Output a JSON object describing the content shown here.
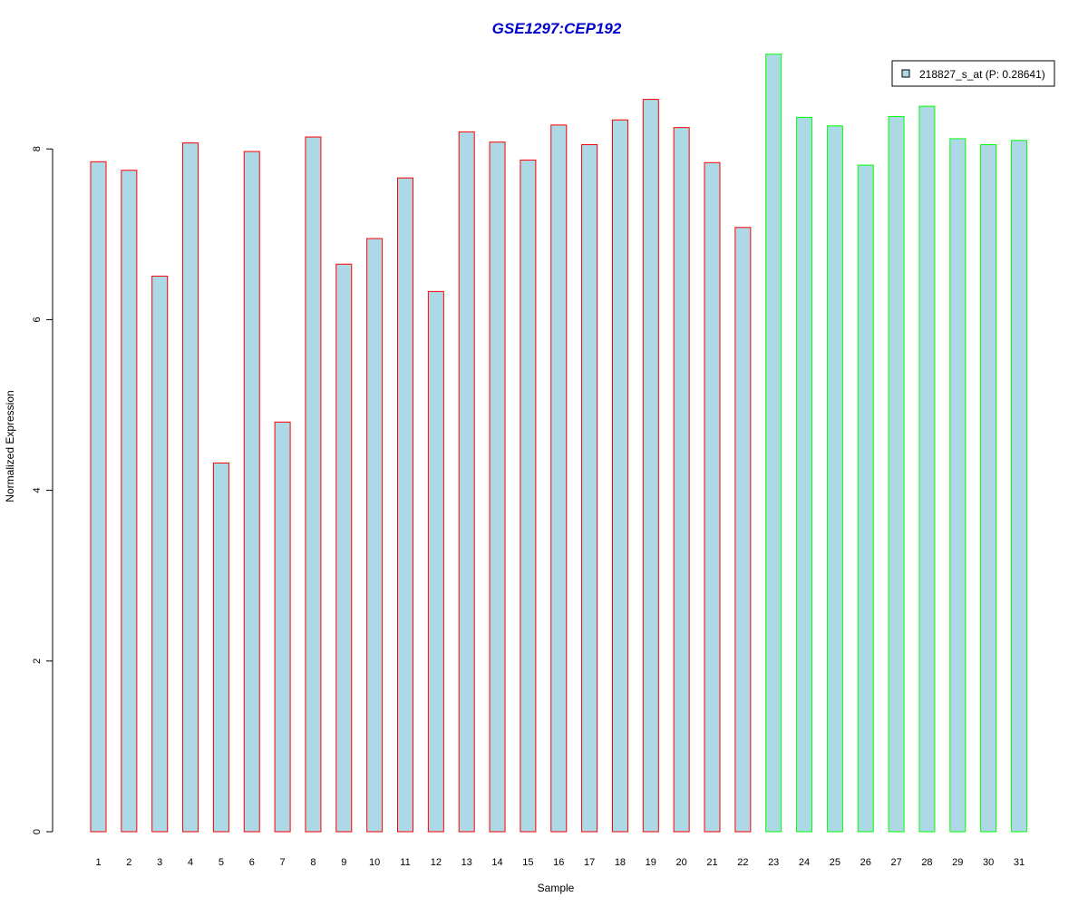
{
  "chart_data": {
    "type": "bar",
    "title": "GSE1297:CEP192",
    "xlabel": "Sample",
    "ylabel": "Normalized Expression",
    "ylim": [
      0,
      9.2
    ],
    "yticks": [
      "0",
      "2",
      "4",
      "6",
      "8"
    ],
    "categories": [
      "1",
      "2",
      "3",
      "4",
      "5",
      "6",
      "7",
      "8",
      "9",
      "10",
      "11",
      "12",
      "13",
      "14",
      "15",
      "16",
      "17",
      "18",
      "19",
      "20",
      "21",
      "22",
      "23",
      "24",
      "25",
      "26",
      "27",
      "28",
      "29",
      "30",
      "31"
    ],
    "series": [
      {
        "name": "218827_s_at (P: 0.28641)",
        "values": [
          7.85,
          7.75,
          6.51,
          8.07,
          4.32,
          7.97,
          4.8,
          8.14,
          6.65,
          6.95,
          7.66,
          6.33,
          8.2,
          8.08,
          7.87,
          8.28,
          8.05,
          8.34,
          8.58,
          8.25,
          7.84,
          7.08,
          9.11,
          8.37,
          8.27,
          7.81,
          8.38,
          8.5,
          8.12,
          8.05,
          8.1
        ]
      }
    ],
    "bar_fill": "#add8e6",
    "group_colors": {
      "red": "#ff0000",
      "green": "#00ff00"
    },
    "bar_border_groups": [
      "red",
      "red",
      "red",
      "red",
      "red",
      "red",
      "red",
      "red",
      "red",
      "red",
      "red",
      "red",
      "red",
      "red",
      "red",
      "red",
      "red",
      "red",
      "red",
      "red",
      "red",
      "red",
      "green",
      "green",
      "green",
      "green",
      "green",
      "green",
      "green",
      "green",
      "green"
    ],
    "title_color": "#0000cc",
    "legend_position": "top-right",
    "grid": false
  }
}
